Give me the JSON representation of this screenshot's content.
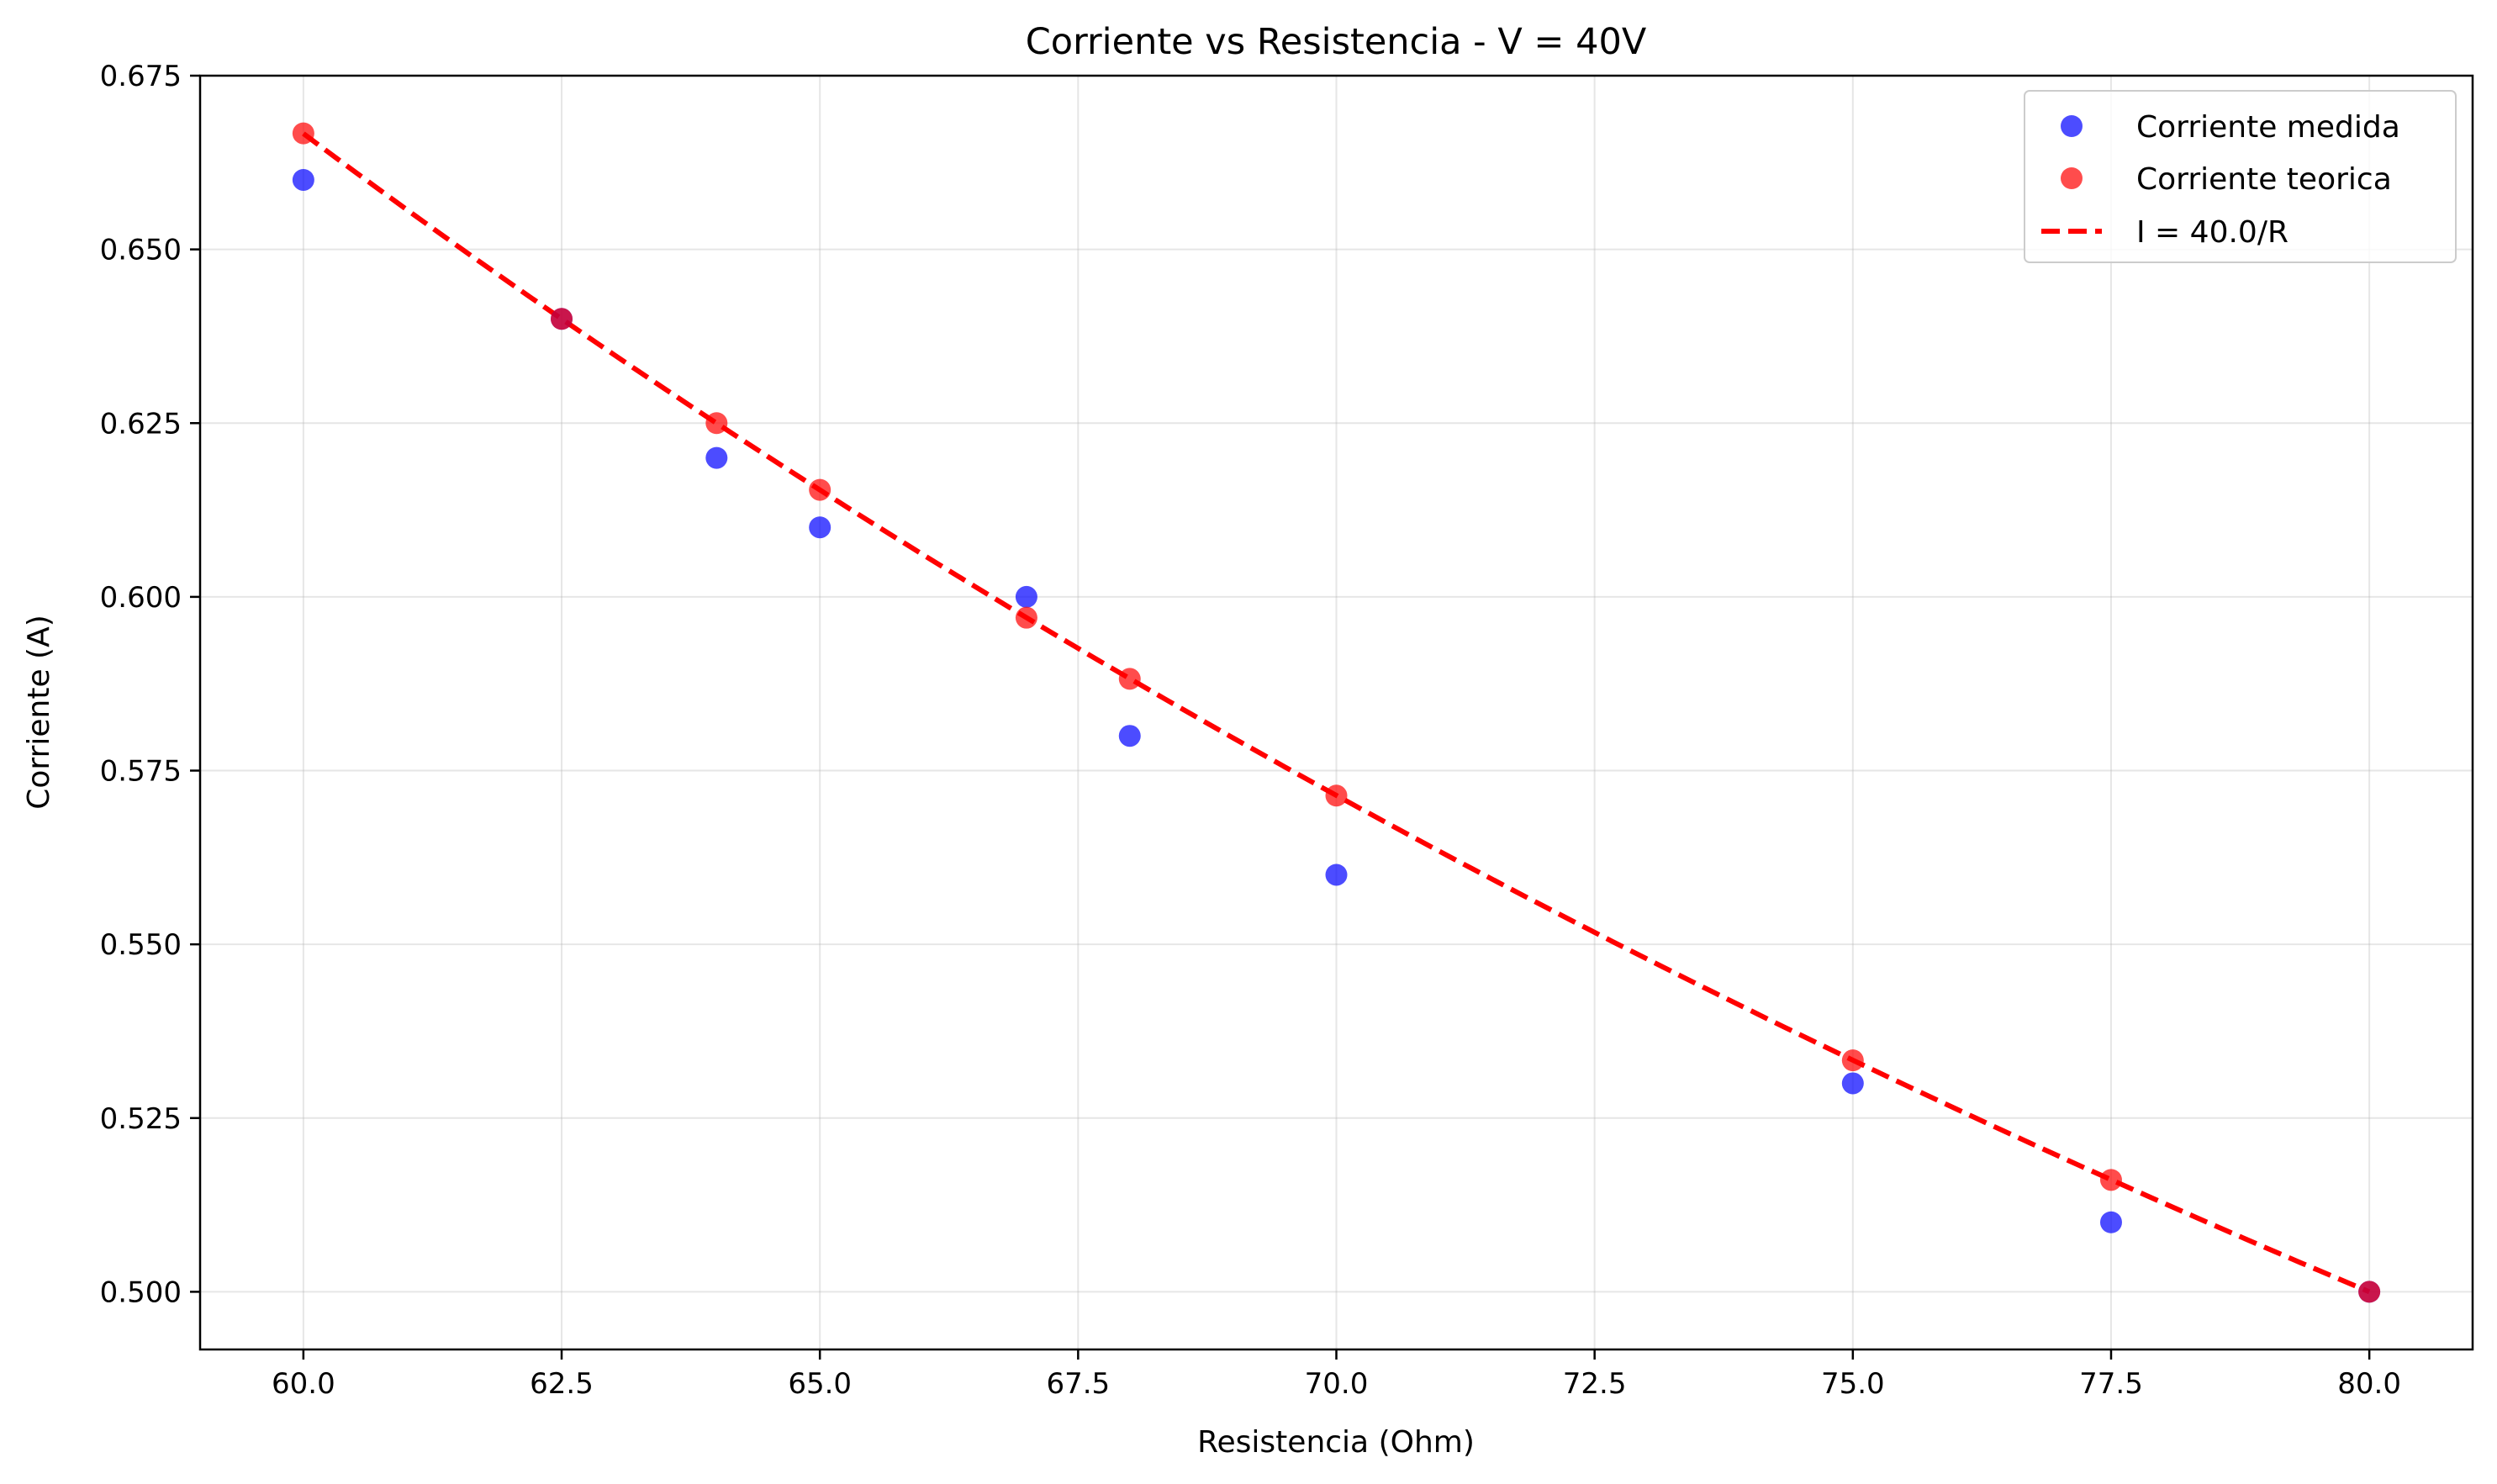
{
  "chart_data": {
    "type": "scatter",
    "title": "Corriente vs Resistencia - V = 40V",
    "xlabel": "Resistencia (Ohm)",
    "ylabel": "Corriente (A)",
    "xlim": [
      59.0,
      81.0
    ],
    "ylim": [
      0.4917,
      0.675
    ],
    "xticks": [
      60.0,
      62.5,
      65.0,
      67.5,
      70.0,
      72.5,
      75.0,
      77.5,
      80.0
    ],
    "xtick_labels": [
      "60.0",
      "62.5",
      "65.0",
      "67.5",
      "70.0",
      "72.5",
      "75.0",
      "77.5",
      "80.0"
    ],
    "yticks": [
      0.5,
      0.525,
      0.55,
      0.575,
      0.6,
      0.625,
      0.65,
      0.675
    ],
    "ytick_labels": [
      "0.500",
      "0.525",
      "0.550",
      "0.575",
      "0.600",
      "0.625",
      "0.650",
      "0.675"
    ],
    "grid": true,
    "legend_position": "top-right",
    "series": [
      {
        "name": "Corriente medida",
        "kind": "scatter",
        "color": "#0000ff",
        "x": [
          60.0,
          62.5,
          64.0,
          65.0,
          67.0,
          68.0,
          70.0,
          75.0,
          77.5,
          80.0
        ],
        "y": [
          0.66,
          0.64,
          0.62,
          0.61,
          0.6,
          0.58,
          0.56,
          0.53,
          0.51,
          0.5
        ]
      },
      {
        "name": "Corriente teorica",
        "kind": "scatter",
        "color": "#ff0000",
        "x": [
          60.0,
          62.5,
          64.0,
          65.0,
          67.0,
          68.0,
          70.0,
          75.0,
          77.5,
          80.0
        ],
        "y": [
          0.6667,
          0.64,
          0.625,
          0.6154,
          0.597,
          0.5882,
          0.5714,
          0.5333,
          0.5161,
          0.5
        ]
      },
      {
        "name": "I = 40.0/R",
        "kind": "line",
        "style": "dashed",
        "color": "#ff0000",
        "voltage": 40.0,
        "x_range": [
          60.0,
          80.0
        ]
      }
    ]
  }
}
